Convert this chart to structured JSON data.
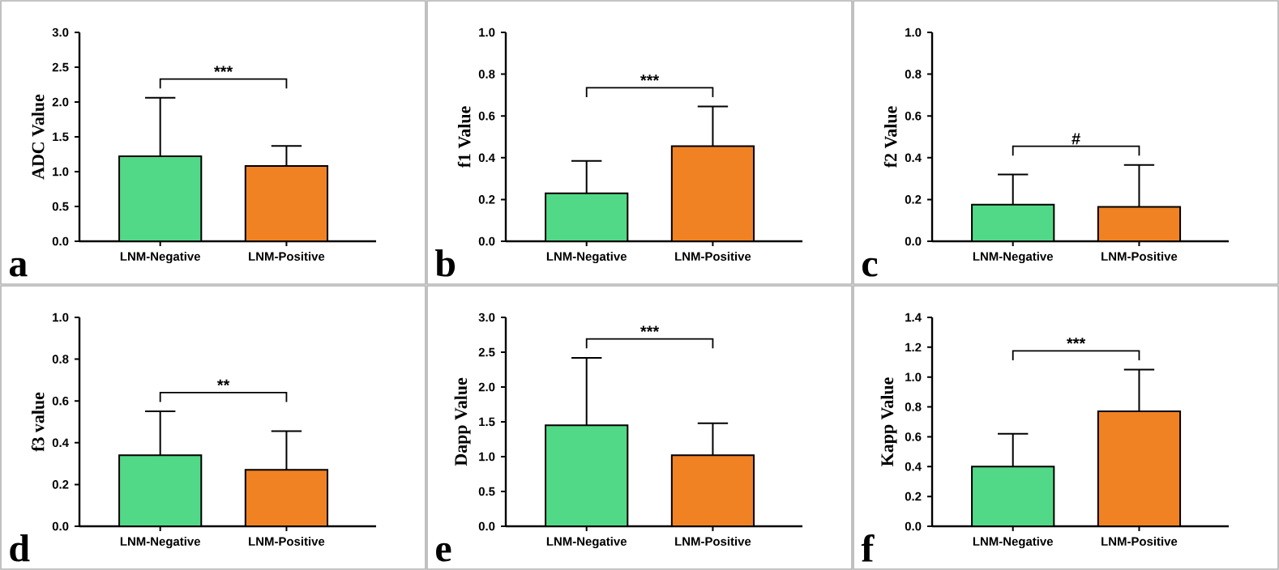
{
  "chart_data": [
    {
      "type": "bar",
      "ylabel": "ADC Value",
      "categories": [
        "LNM-Negative",
        "LNM-Positive"
      ],
      "values": [
        1.22,
        1.08
      ],
      "colors": [
        "#52d987",
        "#f08224"
      ],
      "errors": [
        [
          1.22,
          2.06
        ],
        [
          1.08,
          1.37
        ]
      ],
      "ylim": [
        0,
        3
      ],
      "yticks": [
        {
          "value": 0,
          "label": "0.0"
        },
        {
          "value": 0.5,
          "label": "0.5"
        },
        {
          "value": 1,
          "label": "1.0"
        },
        {
          "value": 1.5,
          "label": "1.5"
        },
        {
          "value": 2,
          "label": "2.0"
        },
        {
          "value": 2.5,
          "label": "2.5"
        },
        {
          "value": 3,
          "label": "3.0"
        }
      ],
      "annotations": [
        "***",
        "a"
      ]
    },
    {
      "type": "bar",
      "ylabel": "f1 Value",
      "categories": [
        "LNM-Negative",
        "LNM-Positive"
      ],
      "values": [
        0.23,
        0.455
      ],
      "colors": [
        "#52d987",
        "#f08224"
      ],
      "errors": [
        [
          0.23,
          0.385
        ],
        [
          0.455,
          0.645
        ]
      ],
      "ylim": [
        0,
        1
      ],
      "yticks": [
        {
          "value": 0,
          "label": "0.0"
        },
        {
          "value": 0.2,
          "label": "0.2"
        },
        {
          "value": 0.4,
          "label": "0.4"
        },
        {
          "value": 0.6,
          "label": "0.6"
        },
        {
          "value": 0.8,
          "label": "0.8"
        },
        {
          "value": 1,
          "label": "1.0"
        }
      ],
      "annotations": [
        "***",
        "b"
      ]
    },
    {
      "type": "bar",
      "ylabel": "f2 Value",
      "categories": [
        "LNM-Negative",
        "LNM-Positive"
      ],
      "values": [
        0.175,
        0.165
      ],
      "colors": [
        "#52d987",
        "#f08224"
      ],
      "errors": [
        [
          0.175,
          0.32
        ],
        [
          0.165,
          0.365
        ]
      ],
      "ylim": [
        0,
        1
      ],
      "yticks": [
        {
          "value": 0,
          "label": "0.0"
        },
        {
          "value": 0.2,
          "label": "0.2"
        },
        {
          "value": 0.4,
          "label": "0.4"
        },
        {
          "value": 0.6,
          "label": "0.6"
        },
        {
          "value": 0.8,
          "label": "0.8"
        },
        {
          "value": 1,
          "label": "1.0"
        }
      ],
      "annotations": [
        "#",
        "c"
      ]
    },
    {
      "type": "bar",
      "ylabel": "f3 value",
      "categories": [
        "LNM-Negative",
        "LNM-Positive"
      ],
      "values": [
        0.34,
        0.27
      ],
      "colors": [
        "#52d987",
        "#f08224"
      ],
      "errors": [
        [
          0.34,
          0.55
        ],
        [
          0.27,
          0.455
        ]
      ],
      "ylim": [
        0,
        1
      ],
      "yticks": [
        {
          "value": 0,
          "label": "0.0"
        },
        {
          "value": 0.2,
          "label": "0.2"
        },
        {
          "value": 0.4,
          "label": "0.4"
        },
        {
          "value": 0.6,
          "label": "0.6"
        },
        {
          "value": 0.8,
          "label": "0.8"
        },
        {
          "value": 1,
          "label": "1.0"
        }
      ],
      "annotations": [
        "**",
        "d"
      ]
    },
    {
      "type": "bar",
      "ylabel": "Dapp Value",
      "categories": [
        "LNM-Negative",
        "LNM-Positive"
      ],
      "values": [
        1.45,
        1.02
      ],
      "colors": [
        "#52d987",
        "#f08224"
      ],
      "errors": [
        [
          1.45,
          2.42
        ],
        [
          1.02,
          1.48
        ]
      ],
      "ylim": [
        0,
        3
      ],
      "yticks": [
        {
          "value": 0,
          "label": "0.0"
        },
        {
          "value": 0.5,
          "label": "0.5"
        },
        {
          "value": 1,
          "label": "1.0"
        },
        {
          "value": 1.5,
          "label": "1.5"
        },
        {
          "value": 2,
          "label": "2.0"
        },
        {
          "value": 2.5,
          "label": "2.5"
        },
        {
          "value": 3,
          "label": "3.0"
        }
      ],
      "annotations": [
        "***",
        "e"
      ]
    },
    {
      "type": "bar",
      "ylabel": "Kapp Value",
      "categories": [
        "LNM-Negative",
        "LNM-Positive"
      ],
      "values": [
        0.4,
        0.77
      ],
      "colors": [
        "#52d987",
        "#f08224"
      ],
      "errors": [
        [
          0.4,
          0.62
        ],
        [
          0.77,
          1.05
        ]
      ],
      "ylim": [
        0,
        1.4
      ],
      "yticks": [
        {
          "value": 0,
          "label": "0.0"
        },
        {
          "value": 0.2,
          "label": "0.2"
        },
        {
          "value": 0.4,
          "label": "0.4"
        },
        {
          "value": 0.6,
          "label": "0.6"
        },
        {
          "value": 0.8,
          "label": "0.8"
        },
        {
          "value": 1,
          "label": "1.0"
        },
        {
          "value": 1.2,
          "label": "1.2"
        },
        {
          "value": 1.4,
          "label": "1.4"
        }
      ],
      "annotations": [
        "***",
        "f"
      ]
    }
  ]
}
